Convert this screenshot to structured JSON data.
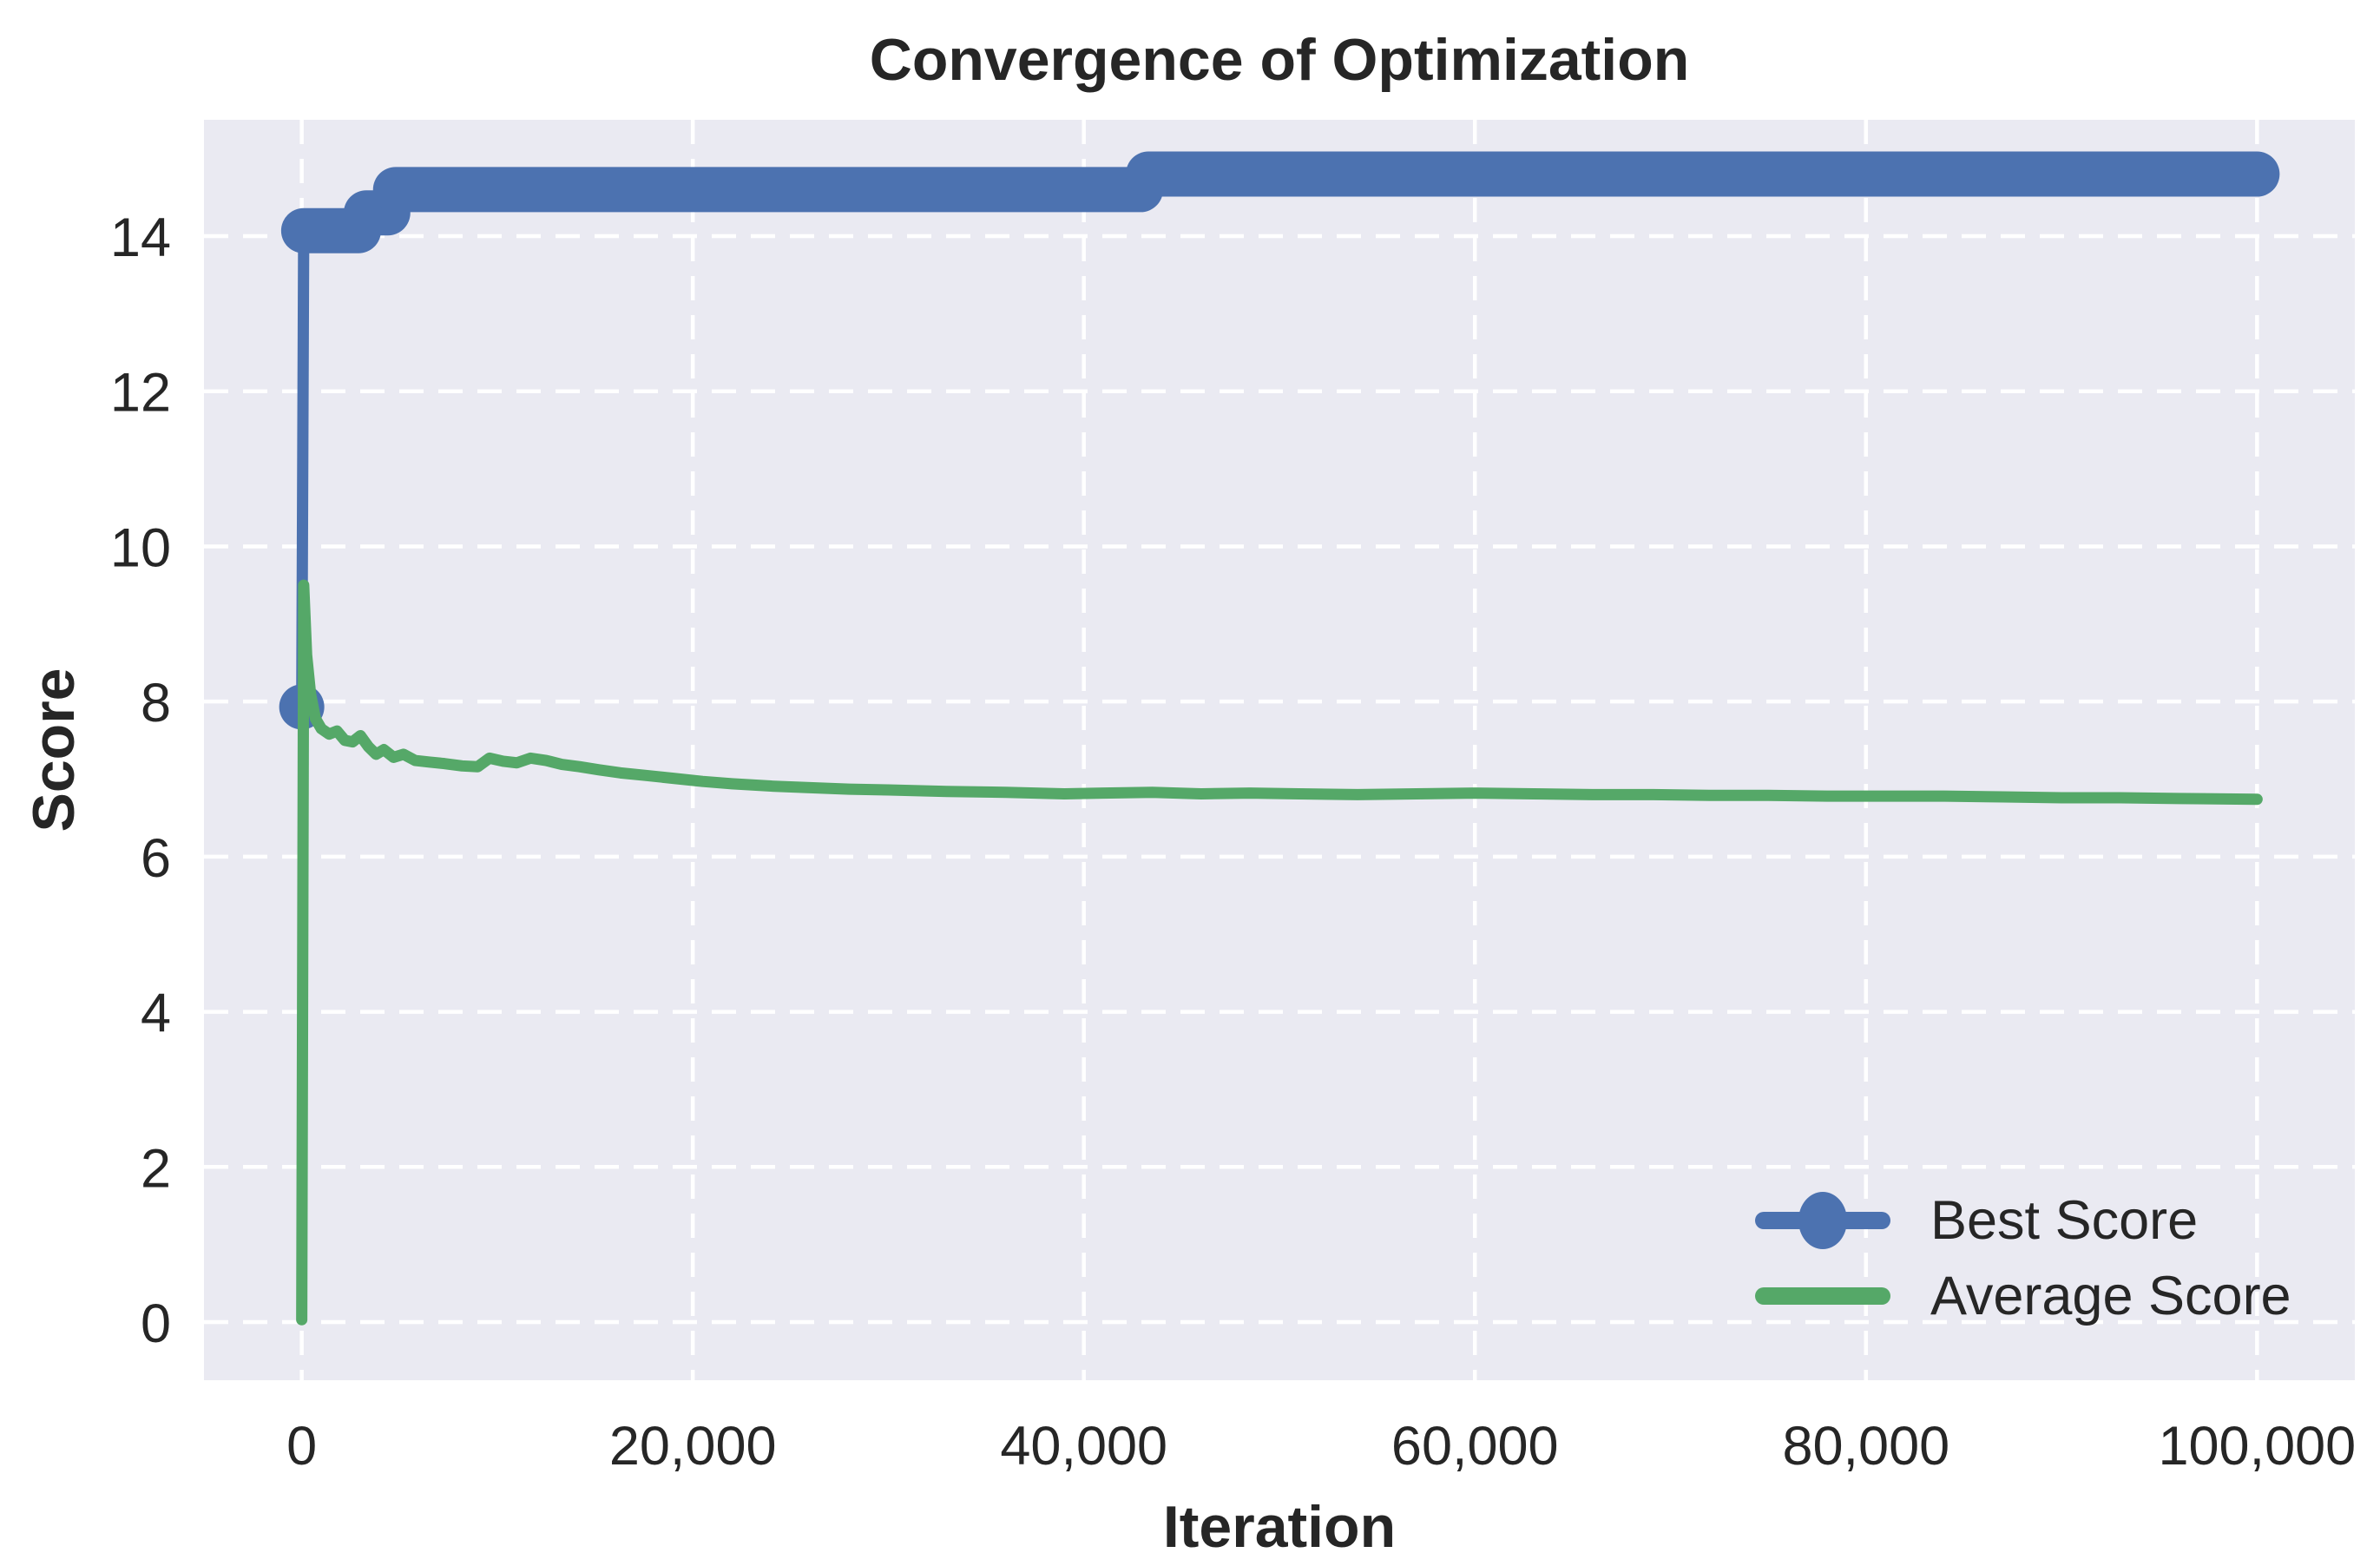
{
  "title": "Convergence of Optimization",
  "xlabel": "Iteration",
  "ylabel": "Score",
  "legend": {
    "best_label": "Best Score",
    "average_label": "Average Score",
    "position": "lower right",
    "frame": false
  },
  "colors": {
    "best": "#4C72B0",
    "average": "#55A868",
    "plot_background": "#EAEAF2",
    "grid": "#FFFFFF",
    "text": "#262626"
  },
  "chart_data": {
    "type": "line",
    "title": "Convergence of Optimization",
    "xlabel": "Iteration",
    "ylabel": "Score",
    "xlim": [
      -5000,
      105000
    ],
    "ylim": [
      -0.75,
      15.5
    ],
    "grid": true,
    "grid_style": "white dashed on lavender background",
    "legend_position": "lower right",
    "x_ticks": [
      0,
      20000,
      40000,
      60000,
      80000,
      100000
    ],
    "x_tick_labels": [
      "0",
      "20,000",
      "40,000",
      "60,000",
      "80,000",
      "100,000"
    ],
    "y_ticks": [
      0,
      2,
      4,
      6,
      8,
      10,
      12,
      14
    ],
    "y_tick_labels": [
      "0",
      "2",
      "4",
      "6",
      "8",
      "10",
      "12",
      "14"
    ],
    "series": [
      {
        "name": "Best Score",
        "color": "#4C72B0",
        "style": "step-with-dense-markers",
        "start_marker": true,
        "points": [
          [
            0,
            7.93
          ],
          [
            100,
            14.07
          ],
          [
            2900,
            14.07
          ],
          [
            3300,
            14.3
          ],
          [
            4400,
            14.3
          ],
          [
            4800,
            14.6
          ],
          [
            42900,
            14.6
          ],
          [
            43300,
            14.8
          ],
          [
            100000,
            14.8
          ]
        ]
      },
      {
        "name": "Average Score",
        "color": "#55A868",
        "style": "line",
        "start_marker": false,
        "points": [
          [
            0,
            0.03
          ],
          [
            100,
            9.5
          ],
          [
            250,
            8.6
          ],
          [
            450,
            8.1
          ],
          [
            700,
            7.78
          ],
          [
            1000,
            7.65
          ],
          [
            1400,
            7.58
          ],
          [
            1800,
            7.62
          ],
          [
            2200,
            7.5
          ],
          [
            2600,
            7.48
          ],
          [
            3000,
            7.56
          ],
          [
            3400,
            7.42
          ],
          [
            3800,
            7.32
          ],
          [
            4200,
            7.38
          ],
          [
            4700,
            7.28
          ],
          [
            5200,
            7.32
          ],
          [
            5800,
            7.24
          ],
          [
            6500,
            7.22
          ],
          [
            7300,
            7.2
          ],
          [
            8200,
            7.17
          ],
          [
            9000,
            7.16
          ],
          [
            9600,
            7.27
          ],
          [
            10300,
            7.23
          ],
          [
            11000,
            7.21
          ],
          [
            11700,
            7.27
          ],
          [
            12500,
            7.24
          ],
          [
            13300,
            7.19
          ],
          [
            14200,
            7.16
          ],
          [
            15200,
            7.12
          ],
          [
            16300,
            7.08
          ],
          [
            17500,
            7.05
          ],
          [
            19000,
            7.01
          ],
          [
            20500,
            6.97
          ],
          [
            22000,
            6.94
          ],
          [
            24000,
            6.91
          ],
          [
            26000,
            6.89
          ],
          [
            28000,
            6.87
          ],
          [
            30000,
            6.86
          ],
          [
            33000,
            6.84
          ],
          [
            36000,
            6.83
          ],
          [
            39000,
            6.81
          ],
          [
            41000,
            6.82
          ],
          [
            43500,
            6.83
          ],
          [
            46000,
            6.81
          ],
          [
            48500,
            6.82
          ],
          [
            51000,
            6.81
          ],
          [
            54000,
            6.8
          ],
          [
            57000,
            6.81
          ],
          [
            60000,
            6.82
          ],
          [
            63000,
            6.81
          ],
          [
            66000,
            6.8
          ],
          [
            69000,
            6.8
          ],
          [
            72000,
            6.79
          ],
          [
            75000,
            6.79
          ],
          [
            78000,
            6.78
          ],
          [
            81000,
            6.78
          ],
          [
            84000,
            6.78
          ],
          [
            87000,
            6.77
          ],
          [
            90000,
            6.76
          ],
          [
            93000,
            6.76
          ],
          [
            96000,
            6.75
          ],
          [
            100000,
            6.74
          ]
        ]
      }
    ]
  }
}
